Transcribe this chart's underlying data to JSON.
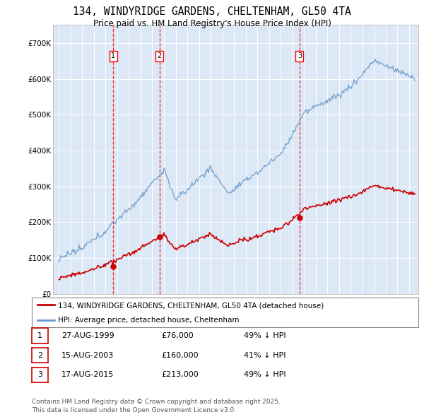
{
  "title": "134, WINDYRIDGE GARDENS, CHELTENHAM, GL50 4TA",
  "subtitle": "Price paid vs. HM Land Registry's House Price Index (HPI)",
  "background_color": "#ffffff",
  "plot_bg_color": "#dce8f5",
  "grid_color": "#ffffff",
  "red_line_color": "#cc0000",
  "blue_line_color": "#6699cc",
  "purchase_dates": [
    1999.65,
    2003.62,
    2015.62
  ],
  "purchase_prices": [
    76000,
    160000,
    213000
  ],
  "purchase_labels": [
    "1",
    "2",
    "3"
  ],
  "legend_entries": [
    "134, WINDYRIDGE GARDENS, CHELTENHAM, GL50 4TA (detached house)",
    "HPI: Average price, detached house, Cheltenham"
  ],
  "table_entries": [
    {
      "label": "1",
      "date": "27-AUG-1999",
      "price": "£76,000",
      "note": "49% ↓ HPI"
    },
    {
      "label": "2",
      "date": "15-AUG-2003",
      "price": "£160,000",
      "note": "41% ↓ HPI"
    },
    {
      "label": "3",
      "date": "17-AUG-2015",
      "price": "£213,000",
      "note": "49% ↓ HPI"
    }
  ],
  "footnote": "Contains HM Land Registry data © Crown copyright and database right 2025.\nThis data is licensed under the Open Government Licence v3.0.",
  "ylim": [
    0,
    750000
  ],
  "yticks": [
    0,
    100000,
    200000,
    300000,
    400000,
    500000,
    600000,
    700000
  ],
  "ytick_labels": [
    "£0",
    "£100K",
    "£200K",
    "£300K",
    "£400K",
    "£500K",
    "£600K",
    "£700K"
  ],
  "xlim_start": 1994.5,
  "xlim_end": 2025.8,
  "xticks": [
    1995,
    1996,
    1997,
    1998,
    1999,
    2000,
    2001,
    2002,
    2003,
    2004,
    2005,
    2006,
    2007,
    2008,
    2009,
    2010,
    2011,
    2012,
    2013,
    2014,
    2015,
    2016,
    2017,
    2018,
    2019,
    2020,
    2021,
    2022,
    2023,
    2024,
    2025
  ]
}
